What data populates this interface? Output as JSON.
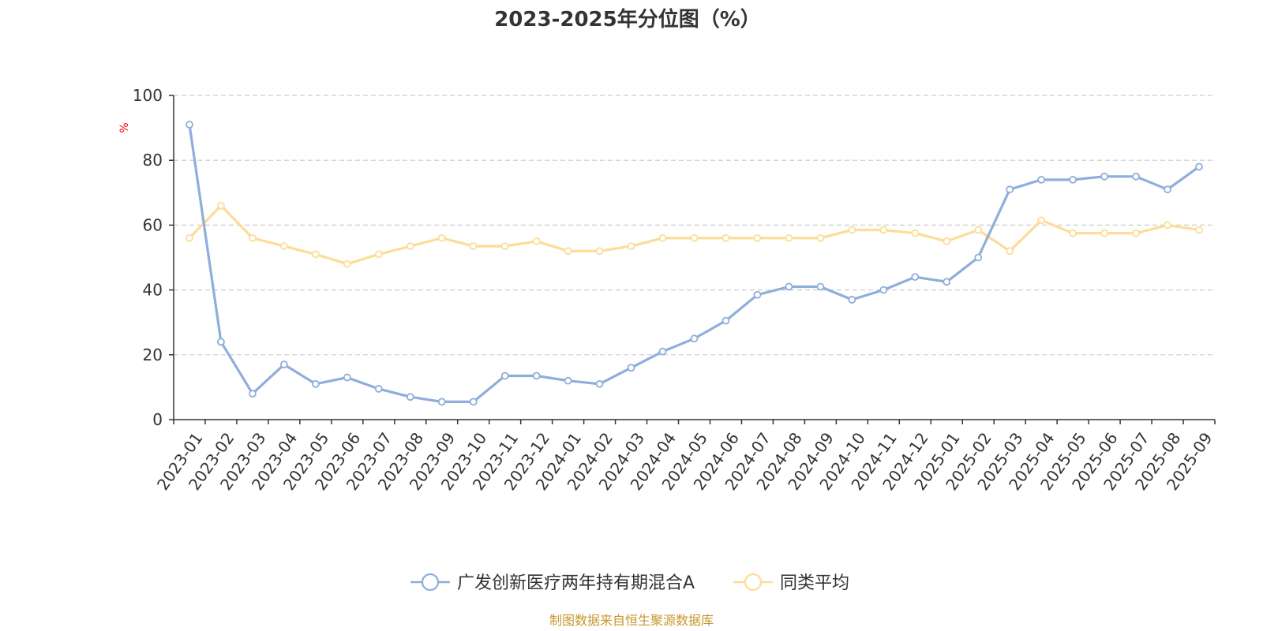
{
  "chart_data": {
    "type": "line",
    "title": "2023-2025年分位图（%）",
    "ylabel": "%",
    "xlabel": "",
    "ylim": [
      0,
      100
    ],
    "yticks": [
      0,
      20,
      40,
      60,
      80,
      100
    ],
    "grid": true,
    "legend_placement": "bottom",
    "categories": [
      "2023-01",
      "2023-02",
      "2023-03",
      "2023-04",
      "2023-05",
      "2023-06",
      "2023-07",
      "2023-08",
      "2023-09",
      "2023-10",
      "2023-11",
      "2023-12",
      "2024-01",
      "2024-02",
      "2024-03",
      "2024-04",
      "2024-05",
      "2024-06",
      "2024-07",
      "2024-08",
      "2024-09",
      "2024-10",
      "2024-11",
      "2024-12",
      "2025-01",
      "2025-02",
      "2025-03",
      "2025-04",
      "2025-05",
      "2025-06",
      "2025-07",
      "2025-08",
      "2025-09"
    ],
    "series": [
      {
        "name": "广发创新医疗两年持有期混合A",
        "color": "#8eaedb",
        "values": [
          91,
          24,
          8,
          17,
          11,
          13,
          9.5,
          7,
          5.5,
          5.5,
          13.5,
          13.5,
          12,
          11,
          16,
          21,
          25,
          30.5,
          38.5,
          41,
          41,
          37,
          40,
          44,
          42.5,
          50,
          71,
          74,
          74,
          75,
          75,
          71,
          78
        ]
      },
      {
        "name": "同类平均",
        "color": "#fddc97",
        "values": [
          56,
          66,
          56,
          53.5,
          51,
          48,
          51,
          53.5,
          56,
          53.5,
          53.5,
          55,
          52,
          52,
          53.5,
          56,
          56,
          56,
          56,
          56,
          56,
          58.5,
          58.5,
          57.5,
          55,
          58.5,
          52,
          61.5,
          57.5,
          57.5,
          57.5,
          60,
          58.5
        ]
      }
    ],
    "source": "制图数据来自恒生聚源数据库"
  }
}
